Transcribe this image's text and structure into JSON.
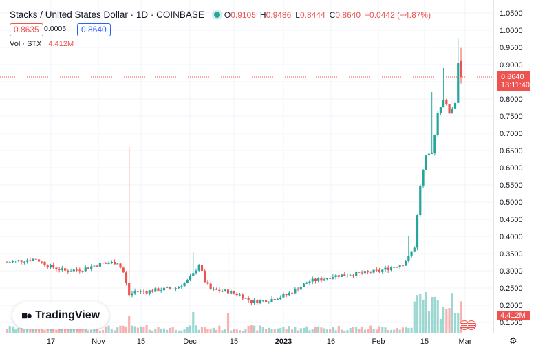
{
  "header": {
    "title": "Stacks / United States Dollar · 1D · COINBASE",
    "o_label": "O",
    "o_value": "0.9105",
    "h_label": "H",
    "h_value": "0.9486",
    "l_label": "L",
    "l_value": "0.8444",
    "c_label": "C",
    "c_value": "0.8640",
    "change": "−0.0442 (−4.87%)",
    "bid": "0.8635",
    "spread": "0.0005",
    "ask": "0.8640",
    "vol_label": "Vol · STX",
    "vol_value": "4.412M"
  },
  "logo": {
    "text": "TradingView"
  },
  "price_tag": {
    "price": "0.8640",
    "countdown": "13:11:40"
  },
  "volume_tag": "4.412M",
  "colors": {
    "up": "#26a69a",
    "down": "#ef5350",
    "grid": "#f0f3fa",
    "accent": "#2962ff"
  },
  "icons": {
    "logo": "tradingview-logo-icon",
    "settings": "gear-icon",
    "flag": "us-flag-icon"
  },
  "chart_data": {
    "type": "candlestick",
    "y_ticks": [
      "1.0500",
      "1.0000",
      "0.9500",
      "0.9000",
      "0.8500",
      "0.8000",
      "0.7500",
      "0.7000",
      "0.6500",
      "0.6000",
      "0.5500",
      "0.5000",
      "0.4500",
      "0.4000",
      "0.3500",
      "0.3000",
      "0.2500",
      "0.2000",
      "0.1500"
    ],
    "x_ticks": [
      "17",
      "Nov",
      "15",
      "Dec",
      "15",
      "2023",
      "16",
      "Feb",
      "15",
      "Mar"
    ],
    "ylim": [
      0.13,
      1.05
    ],
    "last_price": 0.864,
    "grid": true
  }
}
